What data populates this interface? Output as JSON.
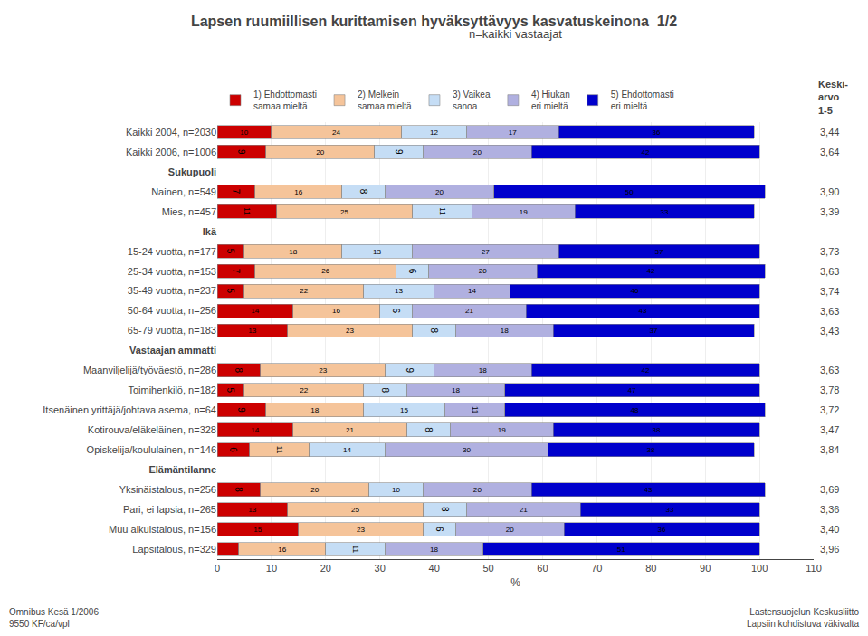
{
  "chart_data": {
    "type": "bar",
    "orientation": "horizontal",
    "stacked": true,
    "data_labels": true,
    "grid": true,
    "legend": "top",
    "title": "Lapsen ruumiillisen kurittamisen hyväksyttävyys kasvatuskeinona  1/2",
    "subtitle": "n=kaikki vastaajat",
    "xlabel": "%",
    "xlim": [
      0,
      110
    ],
    "xticks": [
      0,
      10,
      20,
      30,
      40,
      50,
      60,
      70,
      80,
      90,
      100,
      110
    ],
    "categories": [
      "Kaikki 2004, n=2030",
      "Kaikki 2006, n=1006",
      "Sukupuoli",
      "Nainen, n=549",
      "Mies, n=457",
      "Ikä",
      "15-24 vuotta, n=177",
      "25-34 vuotta, n=153",
      "35-49 vuotta, n=237",
      "50-64 vuotta, n=256",
      "65-79 vuotta, n=183",
      "Vastaajan ammatti",
      "Maanviljelijä/työväestö, n=286",
      "Toimihenkilö, n=182",
      "Itsenäinen yrittäjä/johtava asema, n=64",
      "Kotirouva/eläkeläinen, n=328",
      "Opiskelija/koululainen, n=146",
      "Elämäntilanne",
      "Yksinäistalous, n=256",
      "Pari, ei lapsia, n=265",
      "Muu aikuistalous, n=156",
      "Lapsitalous, n=329"
    ],
    "series": [
      {
        "name": "1) Ehdottomasti\nsamaa mieltä",
        "color": "#cc0000",
        "values": [
          10,
          9,
          null,
          7,
          11,
          null,
          5,
          7,
          5,
          14,
          13,
          null,
          8,
          5,
          9,
          14,
          6,
          null,
          8,
          13,
          15,
          4
        ],
        "value_labels": [
          "10",
          "9",
          null,
          "7",
          "11",
          null,
          "5",
          "7",
          "5",
          "14",
          "13",
          null,
          "8",
          "5",
          "9",
          "14",
          "6",
          null,
          "8",
          "13",
          "15",
          null
        ]
      },
      {
        "name": "2) Melkein\nsamaa mieltä",
        "color": "#f5c49a",
        "values": [
          24,
          20,
          null,
          16,
          25,
          null,
          18,
          26,
          22,
          16,
          23,
          null,
          23,
          22,
          18,
          21,
          11,
          null,
          20,
          25,
          23,
          16
        ]
      },
      {
        "name": "3) Vaikea\nsanoa",
        "color": "#c5ddf5",
        "values": [
          12,
          9,
          null,
          8,
          11,
          null,
          13,
          6,
          13,
          6,
          8,
          null,
          9,
          8,
          15,
          8,
          14,
          null,
          10,
          8,
          6,
          11
        ]
      },
      {
        "name": "4) Hiukan\neri mieltä",
        "color": "#b0b0e0",
        "values": [
          17,
          20,
          null,
          20,
          19,
          null,
          27,
          20,
          14,
          21,
          18,
          null,
          18,
          18,
          11,
          19,
          30,
          null,
          20,
          21,
          20,
          18
        ]
      },
      {
        "name": "5) Ehdottomasti\neri mieltä",
        "color": "#0000cc",
        "values": [
          36,
          42,
          null,
          50,
          33,
          null,
          37,
          42,
          46,
          43,
          37,
          null,
          42,
          47,
          48,
          38,
          38,
          null,
          43,
          33,
          36,
          51
        ]
      }
    ],
    "average_title": "Keski-\narvo\n1-5",
    "averages": [
      3.44,
      3.64,
      null,
      3.9,
      3.39,
      null,
      3.73,
      3.63,
      3.74,
      3.63,
      3.43,
      null,
      3.63,
      3.78,
      3.72,
      3.47,
      3.84,
      null,
      3.69,
      3.36,
      3.4,
      3.96
    ],
    "average_labels": [
      "3,44",
      "3,64",
      null,
      "3,90",
      "3,39",
      null,
      "3,73",
      "3,63",
      "3,74",
      "3,63",
      "3,43",
      null,
      "3,63",
      "3,78",
      "3,72",
      "3,47",
      "3,84",
      null,
      "3,69",
      "3,36",
      "3,40",
      "3,96"
    ],
    "footer_left": [
      "Omnibus Kesä 1/2006",
      "9550 KF/ca/vpl"
    ],
    "footer_right": [
      "Lastensuojelun Keskusliitto",
      "Lapsiin kohdistuva väkivalta"
    ]
  }
}
